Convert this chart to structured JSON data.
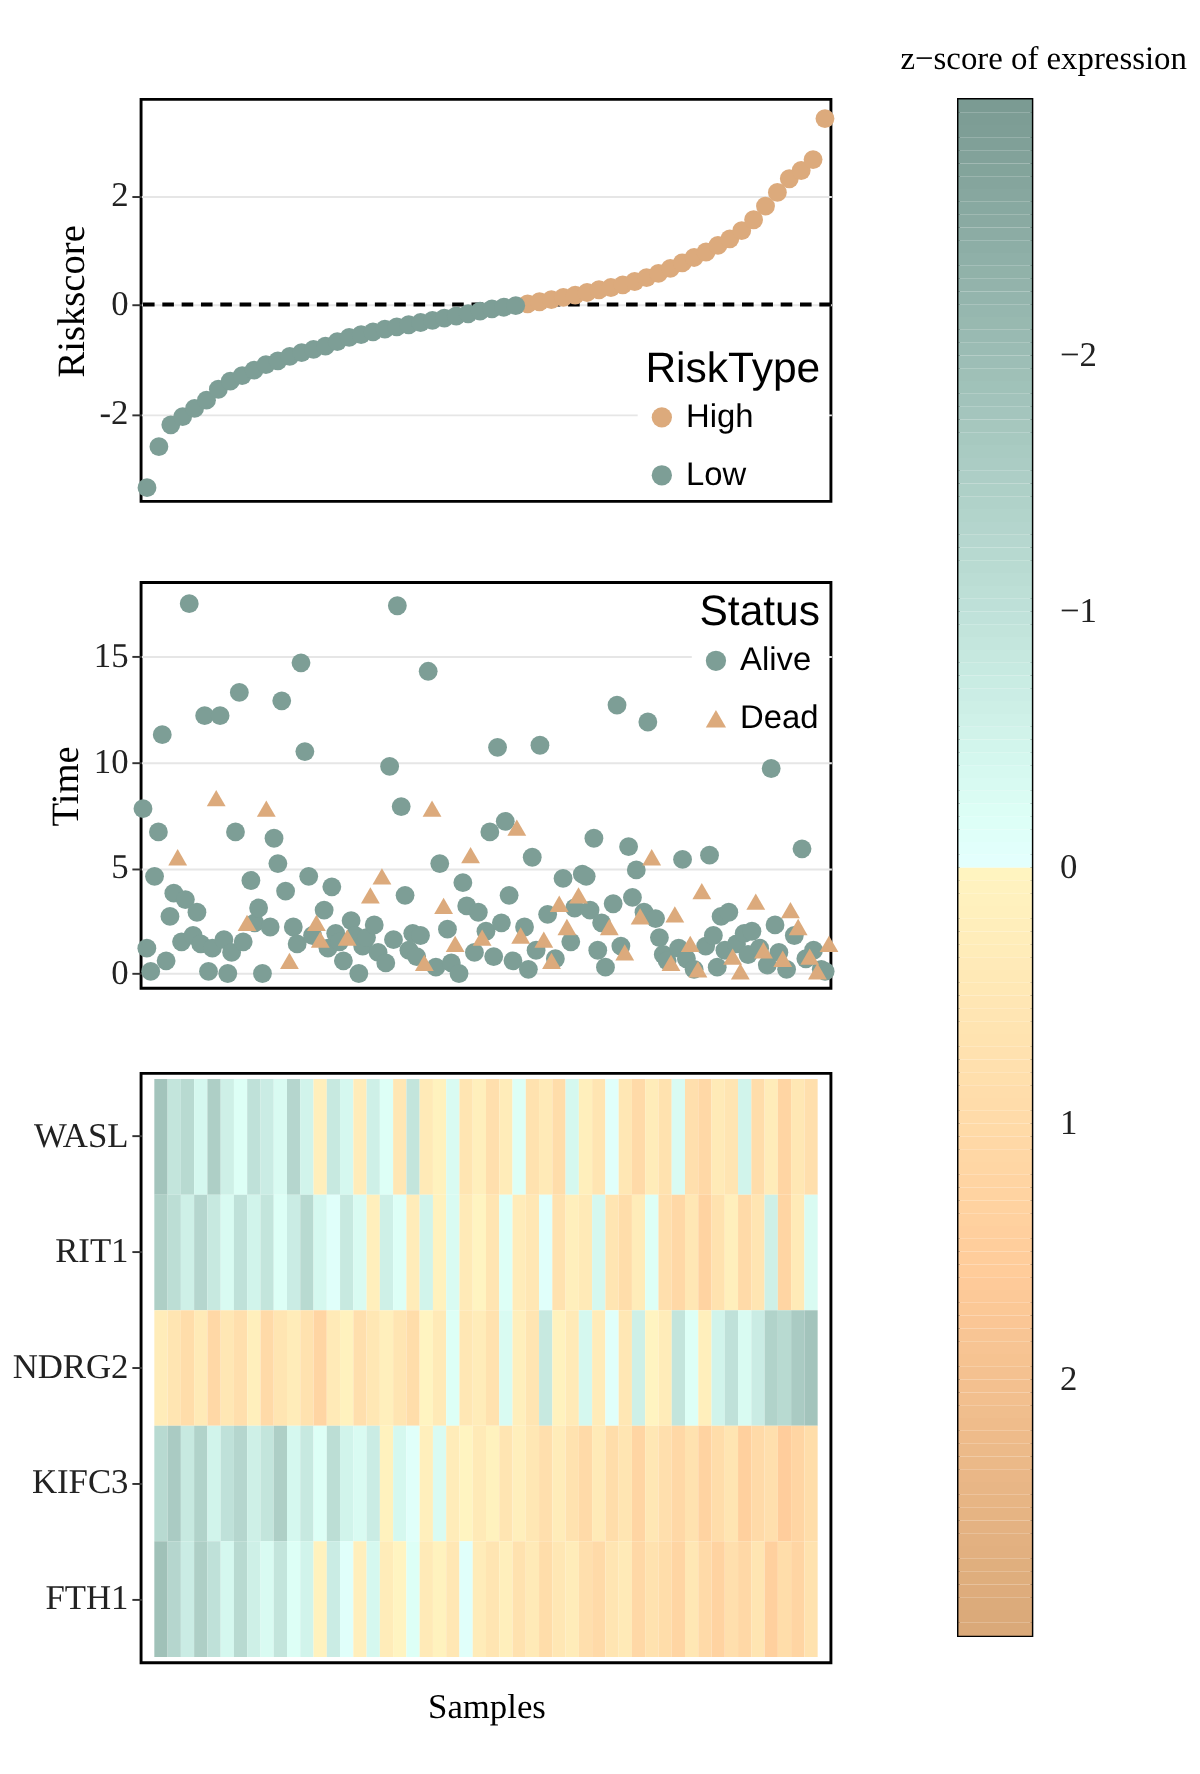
{
  "chart_data": [
    {
      "type": "scatter",
      "ylabel": "Riskscore",
      "legend_title": "RiskType",
      "legend": "bottom right",
      "marker": "circle",
      "grid": "y",
      "tick_labels": "y",
      "categories": [
        null,
        null,
        null,
        null,
        null,
        null,
        null,
        null,
        null,
        null,
        null,
        null,
        null,
        null,
        null,
        null,
        null,
        null,
        null,
        null,
        null,
        null,
        null,
        null,
        null,
        null,
        null,
        null,
        null,
        null,
        null,
        null,
        null,
        null,
        null,
        null,
        null,
        null,
        null,
        null,
        null,
        null,
        null,
        null,
        null,
        null,
        null,
        null,
        null,
        null,
        null,
        null,
        null,
        null,
        null,
        null,
        null,
        null
      ],
      "ylim": [
        -3.6,
        3.75
      ],
      "yticks": [
        -2,
        0,
        2
      ],
      "ref_lines": [
        {
          "axis": "y",
          "value": 0,
          "color": "#000000",
          "line_style": "dashed"
        }
      ],
      "series": [
        {
          "name": "High",
          "color": "#dcaa7c",
          "values": [
            null,
            null,
            null,
            null,
            null,
            null,
            null,
            null,
            null,
            null,
            null,
            null,
            null,
            null,
            null,
            null,
            null,
            null,
            null,
            null,
            null,
            null,
            null,
            null,
            null,
            null,
            null,
            null,
            null,
            null,
            null,
            null,
            0.01,
            0.05,
            0.09,
            0.13,
            0.17,
            0.22,
            0.27,
            0.31,
            0.36,
            0.42,
            0.49,
            0.57,
            0.66,
            0.76,
            0.86,
            0.96,
            1.08,
            1.2,
            1.35,
            1.55,
            1.8,
            2.05,
            2.3,
            2.45,
            2.65,
            3.4
          ]
        },
        {
          "name": "Low",
          "color": "#7d9e96",
          "values": [
            -3.35,
            -2.6,
            -2.2,
            -2.05,
            -1.9,
            -1.75,
            -1.55,
            -1.4,
            -1.3,
            -1.2,
            -1.1,
            -1.03,
            -0.95,
            -0.88,
            -0.82,
            -0.76,
            -0.68,
            -0.6,
            -0.55,
            -0.5,
            -0.45,
            -0.41,
            -0.37,
            -0.33,
            -0.29,
            -0.25,
            -0.21,
            -0.17,
            -0.12,
            -0.08,
            -0.05,
            -0.02,
            null,
            null,
            null,
            null,
            null,
            null,
            null,
            null,
            null,
            null,
            null,
            null,
            null,
            null,
            null,
            null,
            null,
            null,
            null,
            null,
            null,
            null,
            null,
            null,
            null,
            null
          ]
        }
      ]
    },
    {
      "type": "scatter",
      "ylabel": "Time",
      "legend_title": "Status",
      "legend": "top right",
      "grid": "y",
      "tick_labels": "y",
      "categories": [
        null,
        null,
        null,
        null,
        null,
        null,
        null,
        null,
        null,
        null,
        null,
        null,
        null,
        null,
        null,
        null,
        null,
        null,
        null,
        null,
        null,
        null,
        null,
        null,
        null,
        null,
        null,
        null,
        null,
        null,
        null,
        null,
        null,
        null,
        null,
        null,
        null,
        null,
        null,
        null,
        null,
        null,
        null,
        null,
        null,
        null,
        null,
        null,
        null,
        null,
        null,
        null,
        null,
        null,
        null,
        null,
        null,
        null,
        null,
        null,
        null,
        null,
        null,
        null,
        null,
        null,
        null,
        null,
        null,
        null,
        null,
        null,
        null,
        null,
        null,
        null,
        null,
        null,
        null,
        null,
        null,
        null,
        null,
        null,
        null,
        null,
        null,
        null,
        null,
        null,
        null,
        null,
        null,
        null,
        null,
        null,
        null,
        null,
        null,
        null,
        null,
        null,
        null,
        null,
        null,
        null,
        null,
        null,
        null,
        null,
        null,
        null,
        null,
        null,
        null,
        null,
        null,
        null,
        null,
        null,
        null,
        null,
        null,
        null,
        null,
        null,
        null,
        null,
        null,
        null,
        null,
        null,
        null,
        null,
        null,
        null,
        null,
        null,
        null,
        null,
        null,
        null,
        null,
        null,
        null,
        null,
        null,
        null,
        null,
        null,
        null,
        null,
        null,
        null,
        null,
        null,
        null,
        null,
        null,
        null,
        null,
        null,
        null,
        null,
        null,
        null,
        null,
        null,
        null,
        null,
        null,
        null,
        null,
        null,
        null,
        null,
        null,
        null,
        null
      ],
      "ylim": [
        -0.7,
        18.5
      ],
      "yticks": [
        0,
        5,
        10,
        15
      ],
      "series": [
        {
          "name": "Alive",
          "color": "#7d9e96",
          "marker": "circle",
          "values": [
            7.8,
            1.2,
            0.1,
            4.6,
            6.7,
            11.3,
            0.6,
            2.7,
            3.8,
            null,
            1.5,
            3.5,
            17.5,
            1.8,
            2.9,
            1.4,
            12.2,
            0.1,
            1.2,
            null,
            12.2,
            1.6,
            0.0,
            1.0,
            6.7,
            13.3,
            1.5,
            null,
            4.4,
            2.4,
            3.1,
            0.0,
            null,
            2.2,
            6.4,
            5.2,
            12.9,
            3.9,
            null,
            2.2,
            1.4,
            14.7,
            10.5,
            4.6,
            1.8,
            null,
            null,
            3.0,
            1.2,
            4.1,
            1.9,
            1.5,
            0.6,
            null,
            2.5,
            1.8,
            0.0,
            1.3,
            1.7,
            null,
            2.3,
            1.0,
            null,
            0.5,
            9.8,
            1.6,
            17.4,
            7.9,
            3.7,
            1.1,
            1.9,
            0.8,
            1.8,
            null,
            14.3,
            null,
            0.3,
            5.2,
            null,
            2.1,
            0.5,
            null,
            0.0,
            4.3,
            3.2,
            null,
            1.0,
            2.9,
            null,
            2.0,
            6.7,
            0.8,
            10.7,
            2.4,
            7.2,
            3.7,
            0.6,
            null,
            null,
            2.2,
            0.2,
            5.5,
            1.1,
            10.8,
            null,
            2.8,
            null,
            0.7,
            null,
            4.5,
            null,
            1.5,
            3.1,
            null,
            4.7,
            4.6,
            3.0,
            6.4,
            1.1,
            2.4,
            0.3,
            null,
            3.3,
            12.7,
            1.3,
            null,
            6.0,
            3.6,
            4.9,
            null,
            2.9,
            11.9,
            null,
            2.6,
            1.7,
            0.9,
            0.6,
            null,
            null,
            1.2,
            5.4,
            0.7,
            null,
            0.2,
            null,
            null,
            1.3,
            5.6,
            1.8,
            0.3,
            2.7,
            1.1,
            2.9,
            null,
            1.4,
            null,
            1.9,
            0.9,
            2.0,
            null,
            1.2,
            null,
            0.4,
            9.7,
            2.3,
            1.0,
            null,
            0.2,
            null,
            1.8,
            null,
            5.9,
            0.7,
            null,
            1.1,
            null,
            0.2,
            0.1,
            null
          ]
        },
        {
          "name": "Dead",
          "color": "#dcaa7c",
          "marker": "triangle",
          "values": [
            null,
            null,
            null,
            null,
            null,
            null,
            null,
            null,
            null,
            5.5,
            null,
            null,
            null,
            null,
            null,
            null,
            null,
            null,
            null,
            8.3,
            null,
            null,
            null,
            null,
            null,
            null,
            null,
            2.4,
            null,
            null,
            null,
            null,
            7.8,
            null,
            null,
            null,
            null,
            null,
            0.6,
            null,
            null,
            null,
            null,
            null,
            null,
            2.4,
            1.6,
            null,
            null,
            null,
            null,
            null,
            null,
            1.7,
            null,
            null,
            null,
            null,
            null,
            3.7,
            null,
            null,
            4.6,
            null,
            null,
            null,
            null,
            null,
            null,
            null,
            null,
            null,
            null,
            0.5,
            null,
            7.8,
            null,
            null,
            3.2,
            null,
            null,
            1.4,
            null,
            null,
            null,
            5.6,
            null,
            null,
            1.7,
            null,
            null,
            null,
            null,
            null,
            null,
            null,
            null,
            6.9,
            1.8,
            null,
            null,
            null,
            null,
            null,
            1.6,
            null,
            0.6,
            null,
            3.3,
            null,
            2.2,
            null,
            null,
            3.7,
            null,
            null,
            null,
            null,
            null,
            null,
            null,
            2.2,
            null,
            null,
            null,
            1.0,
            null,
            null,
            null,
            2.7,
            null,
            null,
            5.5,
            null,
            null,
            null,
            null,
            0.5,
            2.8,
            null,
            null,
            null,
            1.4,
            null,
            0.2,
            3.9,
            null,
            null,
            null,
            null,
            null,
            null,
            null,
            0.8,
            null,
            0.1,
            null,
            null,
            null,
            3.4,
            null,
            1.1,
            null,
            null,
            null,
            null,
            0.7,
            null,
            3.0,
            null,
            2.2,
            null,
            null,
            0.8,
            null,
            0.1,
            null,
            null,
            1.4
          ]
        }
      ]
    },
    {
      "type": "heatmap",
      "xlabel": "Samples",
      "clabel": "z−score of expression",
      "clim": [
        3,
        -3
      ],
      "cticks": [
        {
          "value": -2,
          "label": "−2"
        },
        {
          "value": -1,
          "label": "−1"
        },
        0,
        1,
        2
      ],
      "colors": [
        "#7a9a92",
        "#ffffff",
        "#d9a878"
      ],
      "categories": [
        null,
        null,
        null,
        null,
        null,
        null,
        null,
        null,
        null,
        null,
        null,
        null,
        null,
        null,
        null,
        null,
        null,
        null,
        null,
        null,
        null,
        null,
        null,
        null,
        null,
        null,
        null,
        null,
        null,
        null,
        null,
        null,
        null,
        null,
        null,
        null,
        null,
        null,
        null,
        null,
        null,
        null,
        null,
        null,
        null,
        null,
        null,
        null,
        null,
        null
      ],
      "y_categories": [
        "WASL",
        "RIT1",
        "NDRG2",
        "KIFC3",
        "FTH1"
      ],
      "cells": [
        [
          -1.8,
          -0.9,
          -1.2,
          -0.4,
          -1.5,
          -0.6,
          -0.2,
          -1.0,
          -0.7,
          -0.3,
          -1.3,
          -0.5,
          0.2,
          -0.8,
          -0.4,
          0.3,
          -0.6,
          -0.2,
          0.5,
          -0.9,
          0.4,
          0.1,
          -0.3,
          0.6,
          0.2,
          0.8,
          0.3,
          -0.2,
          0.7,
          0.4,
          0.9,
          -0.4,
          0.2,
          0.6,
          -0.1,
          0.5,
          1.0,
          0.3,
          0.7,
          -0.3,
          0.8,
          1.1,
          0.4,
          0.6,
          -0.5,
          0.9,
          0.3,
          1.2,
          0.5,
          0.8
        ],
        [
          -1.5,
          -1.1,
          -0.6,
          -1.3,
          -0.8,
          -0.3,
          -1.0,
          -0.5,
          -0.9,
          -0.2,
          -0.7,
          -1.2,
          -0.4,
          -0.1,
          -0.8,
          -0.3,
          0.2,
          -0.6,
          -0.2,
          0.3,
          -0.5,
          0.1,
          -0.3,
          0.4,
          0.0,
          0.6,
          -0.2,
          0.3,
          0.5,
          -0.1,
          0.7,
          0.2,
          0.4,
          -0.4,
          0.6,
          0.9,
          0.3,
          -0.2,
          0.8,
          1.1,
          0.5,
          1.3,
          0.7,
          0.2,
          1.0,
          0.6,
          -0.6,
          1.2,
          0.4,
          -0.3
        ],
        [
          0.3,
          0.6,
          0.9,
          0.4,
          1.1,
          0.5,
          0.8,
          0.2,
          1.0,
          0.6,
          0.3,
          0.7,
          1.2,
          0.4,
          0.1,
          0.8,
          0.5,
          0.2,
          0.6,
          0.9,
          0.0,
          0.4,
          -0.2,
          0.5,
          0.3,
          0.7,
          -0.3,
          0.2,
          0.6,
          -0.8,
          0.1,
          0.4,
          -0.4,
          0.3,
          -0.1,
          0.5,
          -0.6,
          0.0,
          0.3,
          -0.9,
          -0.2,
          0.2,
          -0.5,
          -1.0,
          -0.3,
          -0.7,
          -1.4,
          -1.2,
          -1.6,
          -1.8
        ],
        [
          -1.2,
          -1.6,
          -0.8,
          -1.4,
          -0.5,
          -1.0,
          -1.3,
          -0.6,
          -0.9,
          -1.5,
          -0.4,
          -0.8,
          -0.2,
          -1.1,
          -0.5,
          -0.3,
          -0.7,
          0.1,
          -0.4,
          -0.1,
          0.2,
          -0.3,
          0.3,
          0.0,
          0.4,
          0.1,
          0.6,
          0.2,
          0.5,
          0.8,
          0.3,
          0.7,
          1.0,
          0.4,
          0.9,
          0.6,
          1.2,
          0.5,
          0.8,
          1.1,
          0.7,
          1.3,
          0.9,
          0.6,
          1.4,
          1.0,
          0.8,
          1.5,
          1.2,
          0.9
        ],
        [
          -1.9,
          -1.3,
          -0.7,
          -1.5,
          -1.0,
          -0.4,
          -1.2,
          -0.6,
          -0.3,
          -0.9,
          -0.2,
          -0.5,
          0.1,
          -0.7,
          -0.1,
          0.2,
          -0.4,
          0.3,
          0.0,
          -0.2,
          0.4,
          0.1,
          0.5,
          -0.1,
          0.3,
          0.6,
          0.2,
          0.7,
          0.4,
          0.9,
          0.5,
          0.3,
          0.8,
          1.0,
          0.6,
          0.4,
          1.1,
          0.7,
          0.9,
          1.2,
          0.5,
          1.0,
          1.3,
          0.8,
          1.1,
          0.6,
          1.4,
          0.9,
          1.2,
          0.7
        ]
      ]
    }
  ]
}
